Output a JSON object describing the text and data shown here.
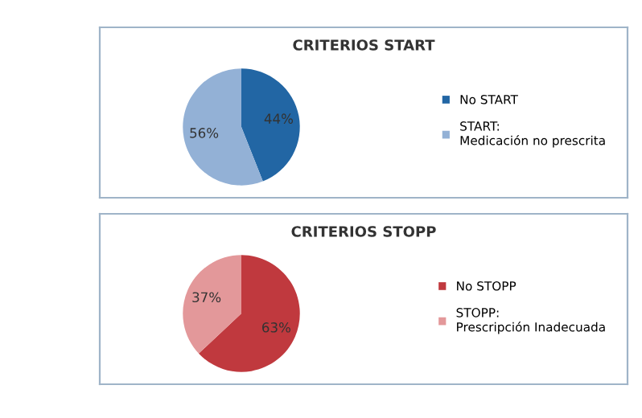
{
  "chart_data": [
    {
      "type": "pie",
      "title": "CRITERIOS START",
      "categories": [
        "No START",
        "START: Medicación no prescrita"
      ],
      "values": [
        44,
        56
      ],
      "value_labels": [
        "44%",
        "56%"
      ],
      "colors": [
        "#2266a4",
        "#93b1d6"
      ],
      "legend": "right"
    },
    {
      "type": "pie",
      "title": "CRITERIOS STOPP",
      "categories": [
        "No STOPP",
        "STOPP: Prescripción Inadecuada"
      ],
      "values": [
        63,
        37
      ],
      "value_labels": [
        "63%",
        "37%"
      ],
      "colors": [
        "#c0393e",
        "#e3989a"
      ],
      "legend": "right"
    }
  ]
}
